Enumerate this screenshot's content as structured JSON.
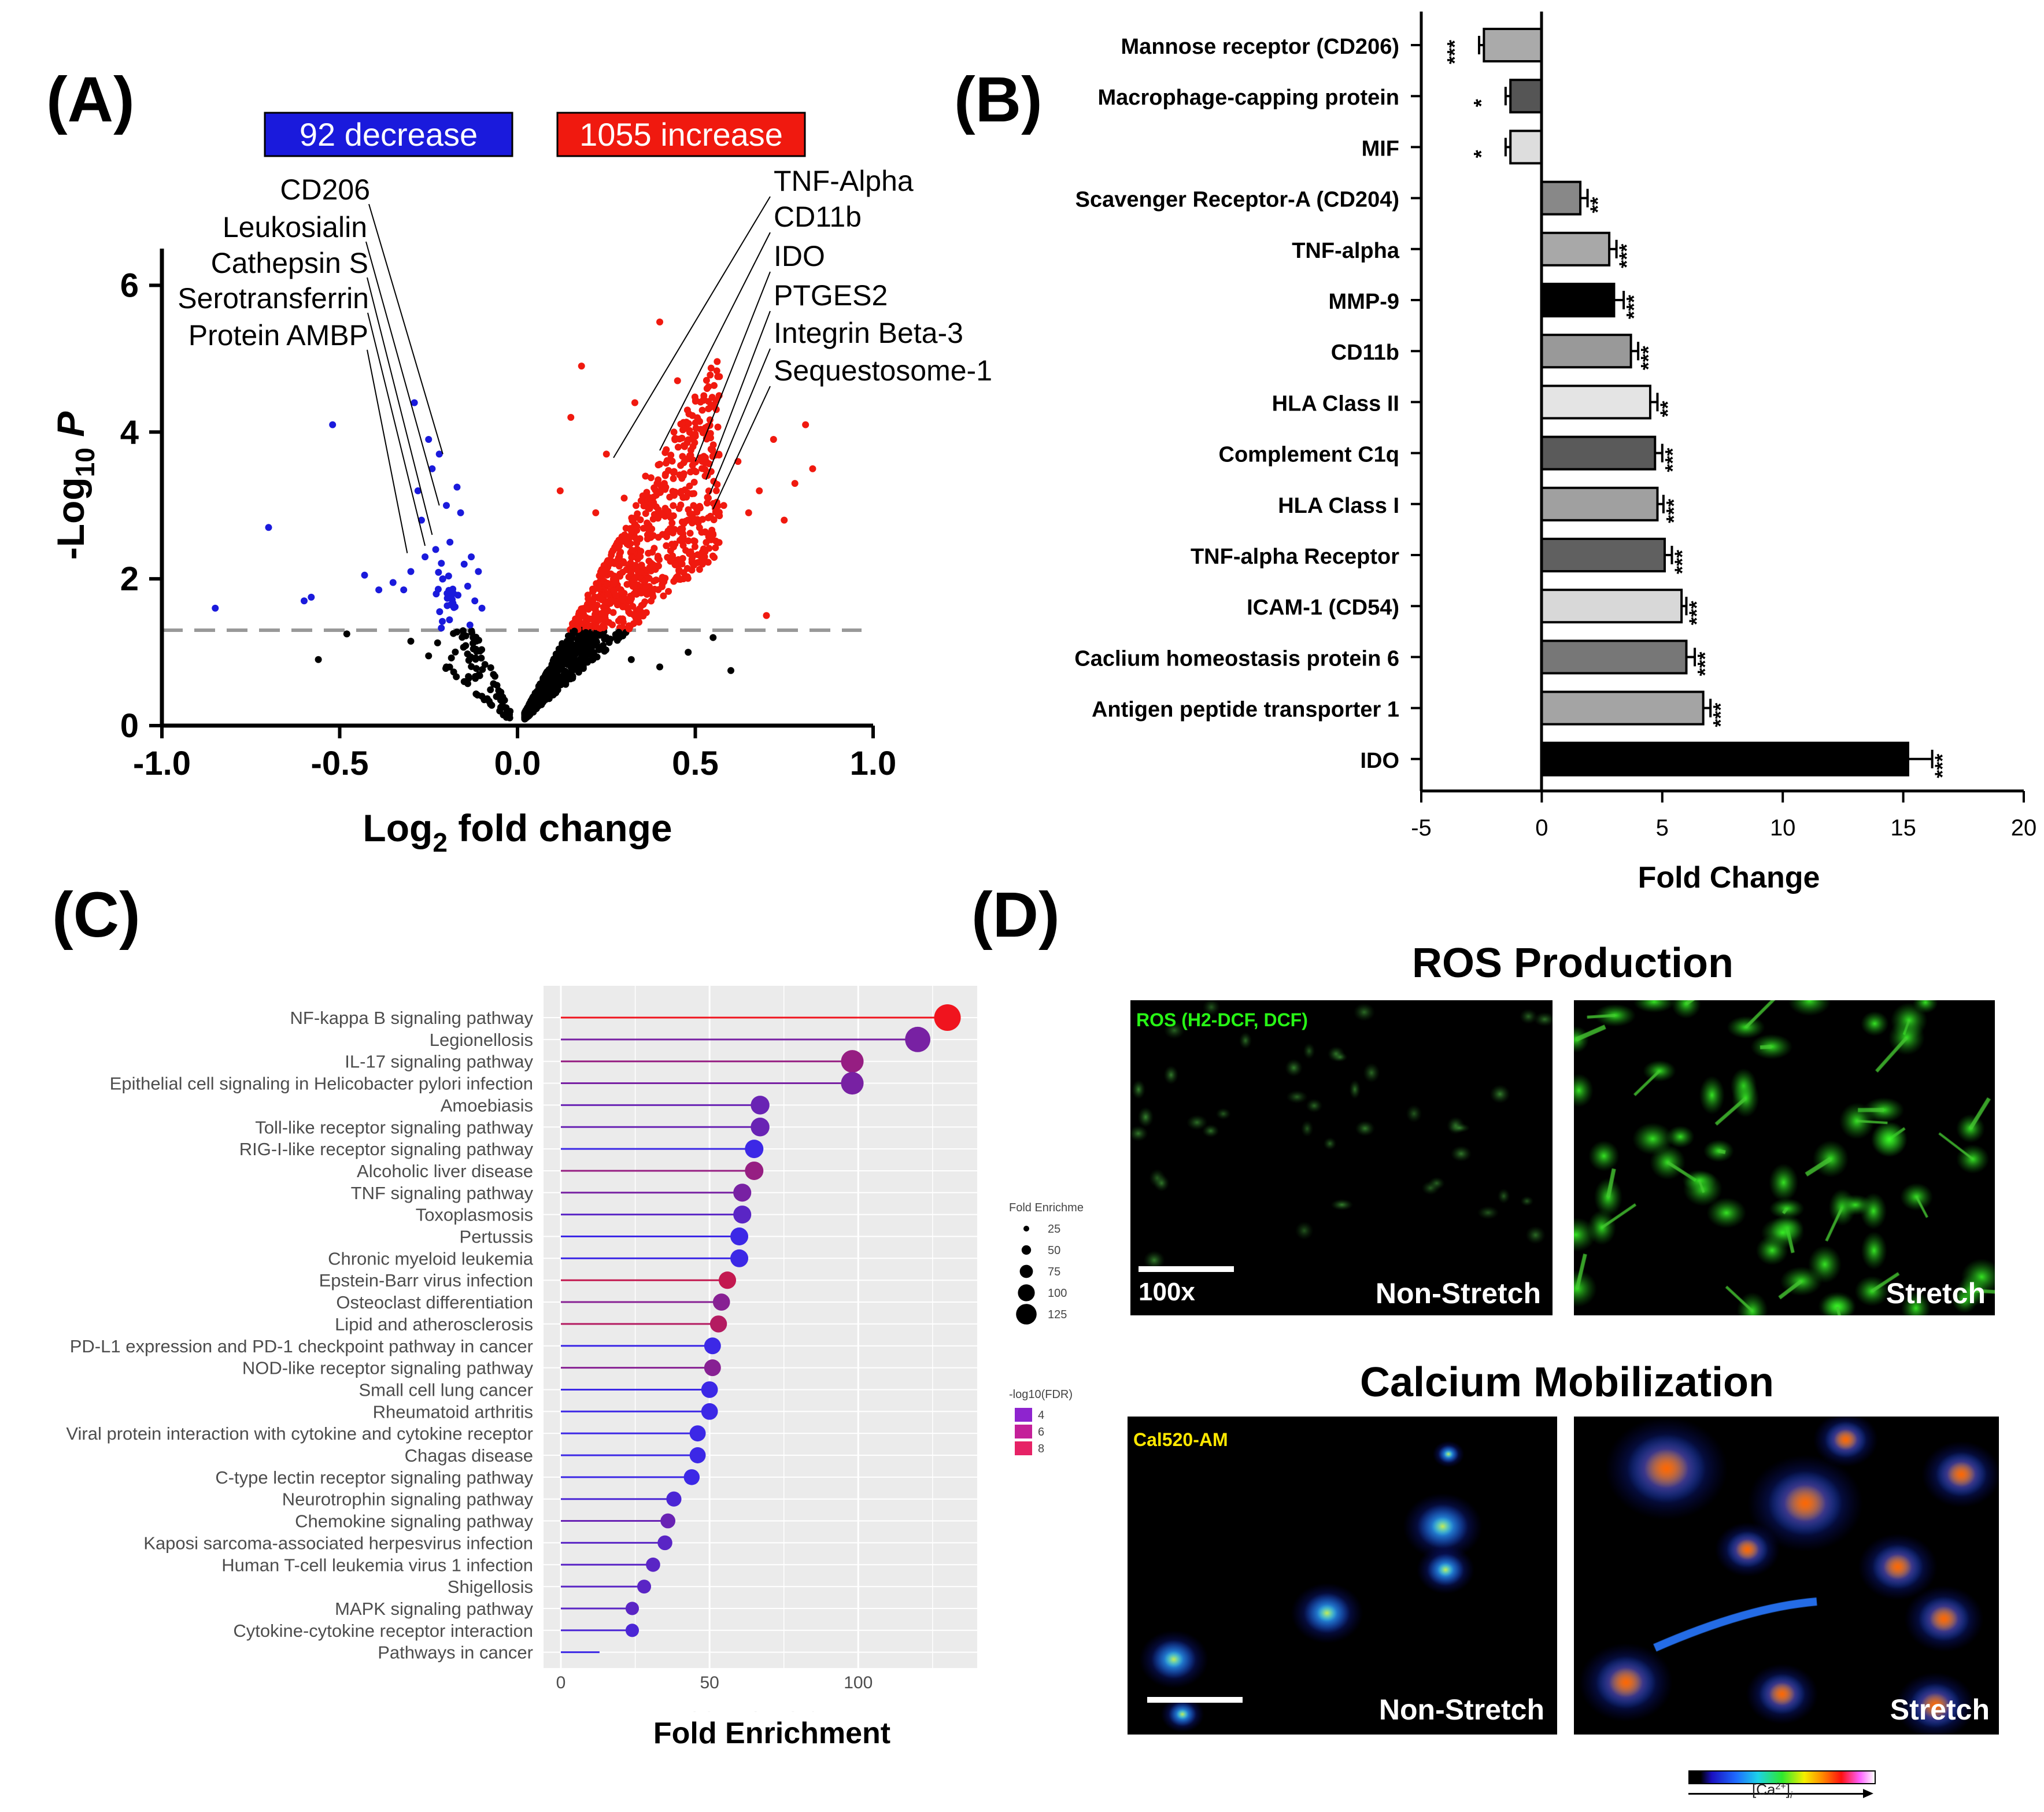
{
  "panels": {
    "a": "(A)",
    "b": "(B)",
    "c": "(C)",
    "d": "(D)"
  },
  "colors": {
    "decrease": "#1a1adc",
    "increase": "#f0190f",
    "nonsig": "#000000",
    "threshold": "#999999"
  },
  "chart_data": [
    {
      "id": "A",
      "type": "scatter",
      "title": "",
      "xlabel_main": "Log",
      "xlabel_sub": "2",
      "xlabel_rest": " fold change",
      "ylabel_main": "-Log",
      "ylabel_sub": "10",
      "ylabel_rest": " P",
      "xlim": [
        -1.0,
        1.0
      ],
      "ylim": [
        0,
        6.5
      ],
      "xticks": [
        "-1.0",
        "-0.5",
        "0.0",
        "0.5",
        "1.0"
      ],
      "xtick_values": [
        -1.0,
        -0.5,
        0.0,
        0.5,
        1.0
      ],
      "yticks": [
        "0",
        "2",
        "4",
        "6"
      ],
      "ytick_values": [
        0,
        2,
        4,
        6
      ],
      "threshold_y": 1.3,
      "decrease_label": "92 decrease",
      "increase_label": "1055 increase",
      "left_annotations": [
        {
          "label": "CD206",
          "x": -0.21,
          "y": 3.7
        },
        {
          "label": "Leukosialin",
          "x": -0.22,
          "y": 3.0
        },
        {
          "label": "Cathepsin S",
          "x": -0.24,
          "y": 2.6
        },
        {
          "label": "Serotransferrin",
          "x": -0.26,
          "y": 2.45
        },
        {
          "label": "Protein AMBP",
          "x": -0.31,
          "y": 2.35
        }
      ],
      "right_annotations": [
        {
          "label": "TNF-Alpha",
          "x": 0.27,
          "y": 3.65
        },
        {
          "label": "CD11b",
          "x": 0.4,
          "y": 3.75
        },
        {
          "label": "IDO",
          "x": 0.5,
          "y": 3.6
        },
        {
          "label": "PTGES2",
          "x": 0.53,
          "y": 3.35
        },
        {
          "label": "Integrin Beta-3",
          "x": 0.54,
          "y": 3.15
        },
        {
          "label": "Sequestosome-1",
          "x": 0.55,
          "y": 2.95
        }
      ],
      "decrease_points": [
        [
          -0.85,
          1.6
        ],
        [
          -0.7,
          2.7
        ],
        [
          -0.6,
          1.7
        ],
        [
          -0.58,
          1.75
        ],
        [
          -0.52,
          4.1
        ],
        [
          -0.43,
          2.05
        ],
        [
          -0.39,
          1.85
        ],
        [
          -0.35,
          1.95
        ],
        [
          -0.32,
          1.85
        ],
        [
          -0.3,
          2.1
        ],
        [
          -0.29,
          4.4
        ],
        [
          -0.28,
          3.2
        ],
        [
          -0.27,
          2.8
        ],
        [
          -0.26,
          2.3
        ],
        [
          -0.25,
          3.9
        ],
        [
          -0.24,
          3.5
        ],
        [
          -0.23,
          2.4
        ],
        [
          -0.22,
          3.7
        ],
        [
          -0.21,
          2.0
        ],
        [
          -0.2,
          3.0
        ],
        [
          -0.19,
          2.5
        ],
        [
          -0.18,
          1.8
        ],
        [
          -0.17,
          3.25
        ],
        [
          -0.16,
          2.9
        ],
        [
          -0.15,
          2.2
        ],
        [
          -0.14,
          1.9
        ],
        [
          -0.13,
          2.3
        ],
        [
          -0.12,
          1.7
        ],
        [
          -0.11,
          2.1
        ],
        [
          -0.1,
          1.6
        ]
      ],
      "increase_points": [
        [
          0.83,
          3.5
        ],
        [
          0.81,
          4.1
        ],
        [
          0.78,
          3.3
        ],
        [
          0.75,
          2.8
        ],
        [
          0.72,
          3.9
        ],
        [
          0.7,
          1.5
        ],
        [
          0.68,
          3.2
        ],
        [
          0.65,
          2.9
        ],
        [
          0.62,
          3.6
        ],
        [
          0.58,
          3.0
        ],
        [
          0.55,
          2.6
        ],
        [
          0.52,
          2.2
        ],
        [
          0.45,
          4.7
        ],
        [
          0.44,
          4.0
        ],
        [
          0.4,
          5.5
        ],
        [
          0.36,
          3.4
        ],
        [
          0.33,
          4.4
        ],
        [
          0.3,
          3.1
        ],
        [
          0.25,
          3.7
        ],
        [
          0.22,
          2.9
        ],
        [
          0.18,
          4.9
        ],
        [
          0.15,
          4.2
        ],
        [
          0.12,
          3.2
        ]
      ],
      "nonsig_points": [
        [
          -0.56,
          0.9
        ],
        [
          -0.48,
          1.25
        ],
        [
          -0.3,
          1.15
        ],
        [
          -0.25,
          0.95
        ],
        [
          -0.2,
          0.8
        ],
        [
          -0.15,
          0.6
        ],
        [
          -0.1,
          0.4
        ],
        [
          -0.05,
          0.2
        ],
        [
          0.05,
          0.25
        ],
        [
          0.1,
          0.5
        ],
        [
          0.15,
          0.8
        ],
        [
          0.2,
          1.0
        ],
        [
          0.25,
          1.2
        ],
        [
          0.32,
          0.9
        ],
        [
          0.4,
          0.8
        ],
        [
          0.48,
          1.0
        ],
        [
          0.6,
          0.75
        ],
        [
          0.55,
          1.2
        ]
      ]
    },
    {
      "id": "B",
      "type": "bar",
      "orientation": "horizontal",
      "xlabel": "Fold Change",
      "xlim": [
        -5,
        20
      ],
      "xticks": [
        "-5",
        "0",
        "5",
        "10",
        "15",
        "20"
      ],
      "xtick_values": [
        -5,
        0,
        5,
        10,
        15,
        20
      ],
      "categories": [
        "Mannose receptor (CD206)",
        "Macrophage-capping protein",
        "MIF",
        "Scavenger Receptor-A (CD204)",
        "TNF-alpha",
        "MMP-9",
        "CD11b",
        "HLA Class II",
        "Complement C1q",
        "HLA Class I",
        "TNF-alpha Receptor",
        "ICAM-1 (CD54)",
        "Caclium homeostasis protein 6",
        "Antigen peptide transporter 1",
        "IDO"
      ],
      "values": [
        -2.4,
        -1.3,
        -1.3,
        1.6,
        2.8,
        3.0,
        3.7,
        4.5,
        4.7,
        4.8,
        5.1,
        5.8,
        6.0,
        6.7,
        15.2
      ],
      "errors": [
        0.2,
        0.2,
        0.2,
        0.3,
        0.3,
        0.4,
        0.3,
        0.3,
        0.3,
        0.25,
        0.3,
        0.2,
        0.35,
        0.3,
        1.0
      ],
      "significance": [
        "***",
        "*",
        "*",
        "**",
        "***",
        "***",
        "***",
        "**",
        "***",
        "***",
        "***",
        "***",
        "***",
        "***",
        "***"
      ],
      "bar_colors": [
        "#aaaaaa",
        "#555555",
        "#dddddd",
        "#888888",
        "#a8a8a8",
        "#000000",
        "#999999",
        "#e4e4e4",
        "#5a5a5a",
        "#a0a0a0",
        "#606060",
        "#d8d8d8",
        "#777777",
        "#a4a4a4",
        "#000000"
      ]
    },
    {
      "id": "C",
      "type": "lollipop",
      "xlabel": "Fold Enrichment",
      "xlim": [
        0,
        140
      ],
      "xticks": [
        "0",
        "50",
        "100"
      ],
      "xtick_values": [
        0,
        50,
        100
      ],
      "categories": [
        "NF-kappa B signaling pathway",
        "Legionellosis",
        "IL-17 signaling pathway",
        "Epithelial cell signaling in Helicobacter pylori infection",
        "Amoebiasis",
        "Toll-like receptor signaling pathway",
        "RIG-I-like receptor signaling pathway",
        "Alcoholic liver disease",
        "TNF signaling pathway",
        "Toxoplasmosis",
        "Pertussis",
        "Chronic myeloid leukemia",
        "Epstein-Barr virus infection",
        "Osteoclast differentiation",
        "Lipid and atherosclerosis",
        "PD-L1 expression and PD-1 checkpoint pathway in cancer",
        "NOD-like receptor signaling pathway",
        "Small cell lung cancer",
        "Rheumatoid arthritis",
        "Viral protein interaction with cytokine and cytokine receptor",
        "Chagas disease",
        "C-type lectin receptor signaling pathway",
        "Neurotrophin signaling pathway",
        "Chemokine signaling pathway",
        "Kaposi sarcoma-associated herpesvirus infection",
        "Human T-cell leukemia virus 1 infection",
        "Shigellosis",
        "MAPK signaling pathway",
        "Cytokine-cytokine receptor interaction",
        "Pathways in cancer"
      ],
      "values": [
        130,
        120,
        98,
        98,
        67,
        67,
        65,
        65,
        61,
        61,
        60,
        60,
        56,
        54,
        53,
        51,
        51,
        50,
        50,
        46,
        46,
        44,
        38,
        36,
        35,
        31,
        28,
        24,
        24,
        13
      ],
      "neg_log10_fdr": [
        9,
        5,
        6,
        5,
        4.5,
        4.5,
        3,
        6,
        5,
        4,
        3,
        3,
        7.5,
        5.5,
        7,
        3,
        5.5,
        3,
        3,
        3,
        3,
        3,
        3.5,
        4.5,
        4,
        4,
        4,
        4,
        3.5,
        3
      ],
      "size_legend_title": "Fold Enrichme",
      "size_legend_values": [
        "25",
        "50",
        "75",
        "100",
        "125"
      ],
      "color_legend_title": "-log10(FDR)",
      "color_legend_values": [
        "4",
        "6",
        "8"
      ],
      "hidden_axis_label": "FoldEnrichment"
    }
  ],
  "panel_d": {
    "title_ros": "ROS Production",
    "title_calcium": "Calcium Mobilization",
    "ros_stain": "ROS (H2-DCF, DCF)",
    "ca_stain": "Cal520-AM",
    "magnification": "100x",
    "non_stretch": "Non-Stretch",
    "stretch": "Stretch",
    "ca_scale_label": "[Ca",
    "ca_scale_sup": "2+",
    "ca_scale_sub": "i",
    "ca_scale_close": "]"
  }
}
